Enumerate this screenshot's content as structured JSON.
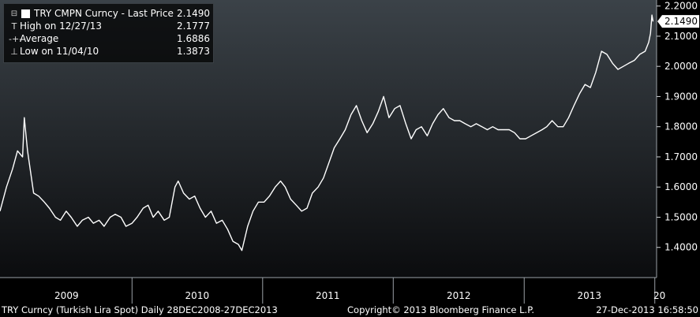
{
  "legend": {
    "title": "TRY CMPN Curncy - Last Price",
    "last_value": "2.1490",
    "rows": [
      {
        "icon": "T",
        "label": "High on 12/27/13",
        "value": "2.1777"
      },
      {
        "icon": "-+-",
        "label": "Average",
        "value": "1.6886"
      },
      {
        "icon": "⊥",
        "label": "Low on 11/04/10",
        "value": "1.3873"
      }
    ]
  },
  "last_price_tag": "2.1490",
  "footer": {
    "left": "TRY Curncy (Turkish Lira Spot)  Daily 28DEC2008-27DEC2013",
    "center": "Copyright© 2013 Bloomberg Finance L.P.",
    "right": "27-Dec-2013 16:58:50"
  },
  "colors": {
    "line": "#ffffff",
    "background_top": "#3b4248",
    "background_bottom": "#0b0c0e",
    "axis_text": "#ffffff",
    "tag_bg": "#ffffff",
    "tag_text": "#000000"
  },
  "chart_data": {
    "type": "line",
    "title": "",
    "xlabel": "",
    "ylabel": "",
    "ylim": [
      1.3,
      2.22
    ],
    "xlim": [
      "2008-12-28",
      "2014-01-06"
    ],
    "y_ticks": [
      "1.4000",
      "1.5000",
      "1.6000",
      "1.7000",
      "1.8000",
      "1.9000",
      "2.0000",
      "2.1000",
      "2.2000"
    ],
    "x_ticks": [
      "2009",
      "2010",
      "2011",
      "2012",
      "2013",
      "20"
    ],
    "grid": false,
    "legend_position": "top-left",
    "series": [
      {
        "name": "TRY CMPN Curncy - Last Price",
        "x": [
          "2008-12-28",
          "2009-01-15",
          "2009-02-01",
          "2009-02-15",
          "2009-03-01",
          "2009-03-06",
          "2009-03-15",
          "2009-04-01",
          "2009-04-15",
          "2009-05-01",
          "2009-05-15",
          "2009-06-01",
          "2009-06-15",
          "2009-07-01",
          "2009-07-15",
          "2009-08-01",
          "2009-08-15",
          "2009-09-01",
          "2009-09-15",
          "2009-10-01",
          "2009-10-15",
          "2009-11-01",
          "2009-11-15",
          "2009-12-01",
          "2009-12-15",
          "2010-01-01",
          "2010-01-15",
          "2010-02-01",
          "2010-02-15",
          "2010-03-01",
          "2010-03-15",
          "2010-04-01",
          "2010-04-15",
          "2010-05-01",
          "2010-05-10",
          "2010-05-25",
          "2010-06-10",
          "2010-06-25",
          "2010-07-10",
          "2010-07-25",
          "2010-08-10",
          "2010-08-25",
          "2010-09-10",
          "2010-09-25",
          "2010-10-10",
          "2010-10-25",
          "2010-11-04",
          "2010-11-20",
          "2010-12-05",
          "2010-12-20",
          "2011-01-05",
          "2011-01-20",
          "2011-02-05",
          "2011-02-20",
          "2011-03-05",
          "2011-03-20",
          "2011-04-05",
          "2011-04-20",
          "2011-05-05",
          "2011-05-20",
          "2011-06-05",
          "2011-06-20",
          "2011-07-05",
          "2011-07-20",
          "2011-08-05",
          "2011-08-20",
          "2011-09-05",
          "2011-09-20",
          "2011-10-05",
          "2011-10-20",
          "2011-11-05",
          "2011-11-20",
          "2011-12-05",
          "2011-12-20",
          "2012-01-05",
          "2012-01-20",
          "2012-02-05",
          "2012-02-20",
          "2012-03-05",
          "2012-03-20",
          "2012-04-05",
          "2012-04-20",
          "2012-05-05",
          "2012-05-20",
          "2012-06-05",
          "2012-06-20",
          "2012-07-05",
          "2012-07-20",
          "2012-08-05",
          "2012-08-20",
          "2012-09-05",
          "2012-09-20",
          "2012-10-05",
          "2012-10-20",
          "2012-11-05",
          "2012-11-20",
          "2012-12-05",
          "2012-12-20",
          "2013-01-05",
          "2013-01-20",
          "2013-02-05",
          "2013-02-20",
          "2013-03-05",
          "2013-03-20",
          "2013-04-05",
          "2013-04-20",
          "2013-05-05",
          "2013-05-20",
          "2013-06-05",
          "2013-06-20",
          "2013-07-05",
          "2013-07-20",
          "2013-08-05",
          "2013-08-20",
          "2013-09-05",
          "2013-09-20",
          "2013-10-05",
          "2013-10-20",
          "2013-11-05",
          "2013-11-20",
          "2013-12-05",
          "2013-12-15",
          "2013-12-20",
          "2013-12-24",
          "2013-12-27"
        ],
        "y": [
          1.52,
          1.6,
          1.66,
          1.72,
          1.7,
          1.83,
          1.72,
          1.58,
          1.57,
          1.55,
          1.53,
          1.5,
          1.49,
          1.52,
          1.5,
          1.47,
          1.49,
          1.5,
          1.48,
          1.49,
          1.47,
          1.5,
          1.51,
          1.5,
          1.47,
          1.48,
          1.5,
          1.53,
          1.54,
          1.5,
          1.52,
          1.49,
          1.5,
          1.6,
          1.62,
          1.58,
          1.56,
          1.57,
          1.53,
          1.5,
          1.52,
          1.48,
          1.49,
          1.46,
          1.42,
          1.41,
          1.39,
          1.47,
          1.52,
          1.55,
          1.55,
          1.57,
          1.6,
          1.62,
          1.6,
          1.56,
          1.54,
          1.52,
          1.53,
          1.58,
          1.6,
          1.63,
          1.68,
          1.73,
          1.76,
          1.79,
          1.84,
          1.87,
          1.82,
          1.78,
          1.81,
          1.85,
          1.9,
          1.83,
          1.86,
          1.87,
          1.81,
          1.76,
          1.79,
          1.8,
          1.77,
          1.81,
          1.84,
          1.86,
          1.83,
          1.82,
          1.82,
          1.81,
          1.8,
          1.81,
          1.8,
          1.79,
          1.8,
          1.79,
          1.79,
          1.79,
          1.78,
          1.76,
          1.76,
          1.77,
          1.78,
          1.79,
          1.8,
          1.82,
          1.8,
          1.8,
          1.83,
          1.87,
          1.91,
          1.94,
          1.93,
          1.98,
          2.05,
          2.04,
          2.01,
          1.99,
          2.0,
          2.01,
          2.02,
          2.04,
          2.05,
          2.08,
          2.11,
          2.17,
          2.149
        ]
      }
    ]
  }
}
